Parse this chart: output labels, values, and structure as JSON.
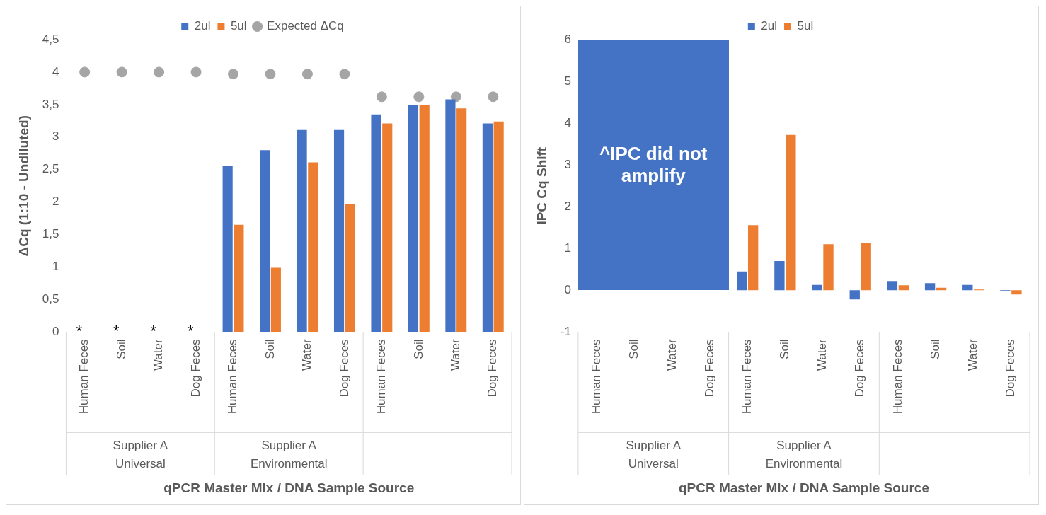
{
  "chart_data": [
    {
      "type": "bar",
      "xlabel": "qPCR Master Mix / DNA Sample Source",
      "ylabel": "ΔCq (1:10 - Undiluted)",
      "categories": [
        "Human Feces",
        "Soil",
        "Water",
        "Dog Feces",
        "Human Feces",
        "Soil",
        "Water",
        "Dog Feces",
        "Human Feces",
        "Soil",
        "Water",
        "Dog Feces"
      ],
      "annotations": [
        "Supplier A Universal",
        "Supplier A Environmental"
      ],
      "series": [
        {
          "name": "2ul",
          "color": "#4472c4",
          "values": [
            null,
            null,
            null,
            null,
            2.56,
            2.8,
            3.11,
            3.11,
            3.35,
            3.49,
            3.58,
            3.21
          ],
          "value_labels": [
            "*",
            "*",
            "*",
            "*",
            null,
            null,
            null,
            null,
            null,
            null,
            null,
            null
          ]
        },
        {
          "name": "5ul",
          "color": "#ed7d31",
          "values": [
            null,
            null,
            null,
            null,
            1.65,
            0.99,
            2.61,
            1.97,
            3.21,
            3.49,
            3.44,
            3.24
          ]
        },
        {
          "name": "Expected ΔCq",
          "type": "scatter",
          "color": "#a5a5a5",
          "values": [
            4,
            4,
            4,
            4,
            3.97,
            3.97,
            3.97,
            3.97,
            3.62,
            3.62,
            3.62,
            3.62
          ]
        }
      ],
      "ylim": [
        0,
        4.5
      ],
      "yticks": [
        0,
        {
          "value": 0.5,
          "label": "0,5"
        },
        1,
        {
          "value": 1.5,
          "label": "1,5"
        },
        2,
        {
          "value": 2.5,
          "label": "2,5"
        },
        3,
        {
          "value": 3.5,
          "label": "3,5"
        },
        4,
        {
          "value": 4.5,
          "label": "4,5"
        }
      ],
      "grid": false,
      "legend": "top",
      "marker": "circle"
    },
    {
      "type": "bar",
      "xlabel": "qPCR Master Mix / DNA Sample Source",
      "ylabel": "IPC Cq Shift",
      "categories": [
        "Human Feces",
        "Soil",
        "Water",
        "Dog Feces",
        "Human Feces",
        "Soil",
        "Water",
        "Dog Feces",
        "Human Feces",
        "Soil",
        "Water",
        "Dog Feces"
      ],
      "annotations": [
        "Supplier A Universal",
        "Supplier A Environmental",
        {
          "text": "^IPC did not amplify"
        }
      ],
      "series": [
        {
          "name": "2ul",
          "color": "#4472c4",
          "values": [
            null,
            null,
            null,
            null,
            0.45,
            0.7,
            0.13,
            -0.22,
            0.22,
            0.17,
            0.13,
            -0.02
          ]
        },
        {
          "name": "5ul",
          "color": "#ed7d31",
          "values": [
            null,
            null,
            null,
            null,
            1.56,
            3.72,
            1.1,
            1.14,
            0.12,
            0.06,
            0.02,
            -0.1
          ]
        }
      ],
      "ylim": [
        -1,
        6
      ],
      "yticks": [
        -1,
        0,
        1,
        2,
        3,
        4,
        5,
        6
      ],
      "grid": false,
      "legend": "top"
    }
  ]
}
